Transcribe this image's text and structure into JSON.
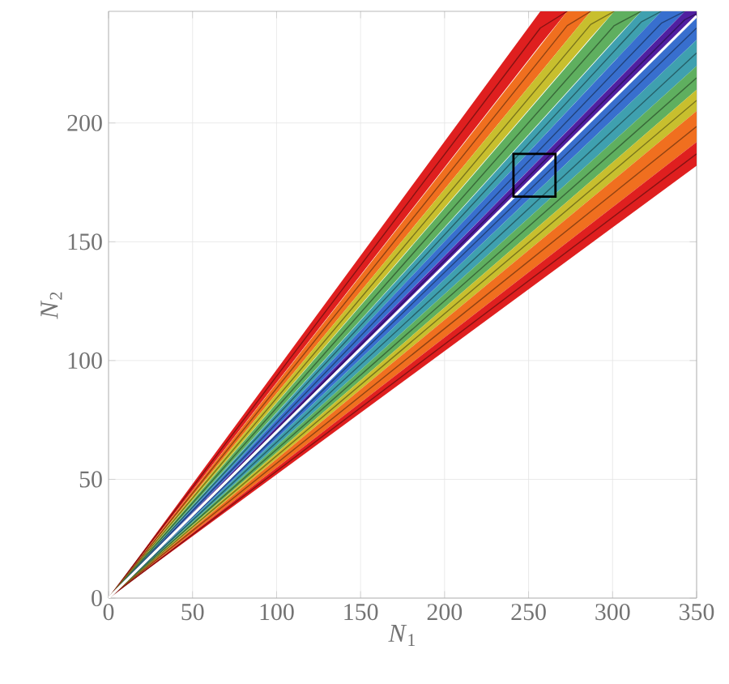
{
  "chart_data": {
    "type": "line",
    "xlabel": "*N*$_{1}$",
    "ylabel": "*N*$_{2}$",
    "xlim": [
      0,
      350
    ],
    "ylim": [
      0,
      247
    ],
    "xticks": [
      0,
      50,
      100,
      150,
      200,
      250,
      300,
      350
    ],
    "yticks": [
      0,
      50,
      100,
      150,
      200
    ],
    "grid": true,
    "series": [
      {
        "color": "#861313",
        "x": [
          0,
          257,
          273
        ],
        "values": [
          0,
          240,
          247
        ],
        "lower": [
          0,
          233,
          247
        ],
        "upper": [
          0,
          247,
          247
        ]
      },
      {
        "color": "#904313",
        "x": [
          0,
          273,
          287
        ],
        "values": [
          0,
          241,
          247
        ],
        "lower": [
          0,
          235,
          247
        ],
        "upper": [
          0,
          247,
          247
        ]
      },
      {
        "color": "#78731c",
        "x": [
          0,
          287,
          301
        ],
        "values": [
          0,
          241.5,
          247
        ],
        "lower": [
          0,
          236,
          247
        ],
        "upper": [
          0,
          247,
          247
        ]
      },
      {
        "color": "#396939",
        "x": [
          0,
          301,
          317
        ],
        "values": [
          0,
          241,
          247
        ],
        "lower": [
          0,
          235,
          247
        ],
        "upper": [
          0,
          247,
          247
        ]
      },
      {
        "color": "#266069",
        "x": [
          0,
          317,
          329
        ],
        "values": [
          0,
          242.5,
          247
        ],
        "lower": [
          0,
          238,
          247
        ],
        "upper": [
          0,
          247,
          247
        ]
      },
      {
        "color": "#22437c",
        "x": [
          0,
          329,
          343
        ],
        "values": [
          0,
          242,
          247
        ],
        "lower": [
          0,
          237,
          247
        ],
        "upper": [
          0,
          247,
          247
        ]
      },
      {
        "color": "#301360",
        "x": [
          0,
          343,
          350
        ],
        "values": [
          0,
          243.5,
          246
        ],
        "lower": [
          0,
          240,
          245
        ],
        "upper": [
          0,
          247,
          247
        ]
      },
      {
        "color": "#22437c",
        "x": [
          0,
          350
        ],
        "values": [
          0,
          240
        ],
        "lower": [
          0,
          235
        ],
        "upper": [
          0,
          245
        ]
      },
      {
        "color": "#266069",
        "x": [
          0,
          350
        ],
        "values": [
          0,
          229.5
        ],
        "lower": [
          0,
          224
        ],
        "upper": [
          0,
          235
        ]
      },
      {
        "color": "#396939",
        "x": [
          0,
          350
        ],
        "values": [
          0,
          219
        ],
        "lower": [
          0,
          214
        ],
        "upper": [
          0,
          224
        ]
      },
      {
        "color": "#78731c",
        "x": [
          0,
          350
        ],
        "values": [
          0,
          209.5
        ],
        "lower": [
          0,
          205
        ],
        "upper": [
          0,
          214
        ]
      },
      {
        "color": "#904313",
        "x": [
          0,
          350
        ],
        "values": [
          0,
          198.5
        ],
        "lower": [
          0,
          192
        ],
        "upper": [
          0,
          205
        ]
      },
      {
        "color": "#861313",
        "x": [
          0,
          350
        ],
        "values": [
          0,
          187
        ],
        "lower": [
          0,
          182
        ],
        "upper": [
          0,
          192
        ]
      },
      {
        "color": "#ffffff",
        "x": [
          0,
          350
        ],
        "values": [
          0,
          245
        ]
      }
    ]
  }
}
